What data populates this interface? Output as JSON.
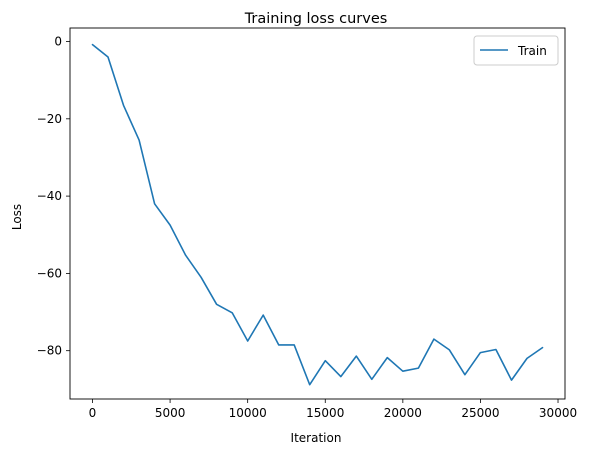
{
  "chart_data": {
    "type": "line",
    "title": "Training loss curves",
    "xlabel": "Iteration",
    "ylabel": "Loss",
    "xlim": [
      -1450,
      30450
    ],
    "ylim": [
      -92.5,
      3.5
    ],
    "xticks": [
      0,
      5000,
      10000,
      15000,
      20000,
      25000,
      30000
    ],
    "xtick_labels": [
      "0",
      "5000",
      "10000",
      "15000",
      "20000",
      "25000",
      "30000"
    ],
    "yticks": [
      0,
      -20,
      -40,
      -60,
      -80
    ],
    "ytick_labels": [
      "0",
      "−20",
      "−40",
      "−60",
      "−80"
    ],
    "grid": false,
    "legend_position": "top-right",
    "series": [
      {
        "name": "Train",
        "color": "#1f77b4",
        "x": [
          0,
          1000,
          2000,
          3000,
          4000,
          5000,
          6000,
          7000,
          8000,
          9000,
          10000,
          11000,
          12000,
          13000,
          14000,
          15000,
          16000,
          17000,
          18000,
          19000,
          20000,
          21000,
          22000,
          23000,
          24000,
          25000,
          26000,
          27000,
          28000,
          29000
        ],
        "y": [
          -0.8,
          -4.0,
          -16.5,
          -25.5,
          -42.0,
          -47.5,
          -55.3,
          -61.0,
          -68.0,
          -70.2,
          -77.5,
          -70.8,
          -78.5,
          -78.5,
          -88.8,
          -82.6,
          -86.7,
          -81.4,
          -87.4,
          -81.8,
          -85.3,
          -84.5,
          -77.0,
          -79.8,
          -86.2,
          -80.5,
          -79.7,
          -87.6,
          -82.0,
          -79.2
        ]
      }
    ]
  }
}
